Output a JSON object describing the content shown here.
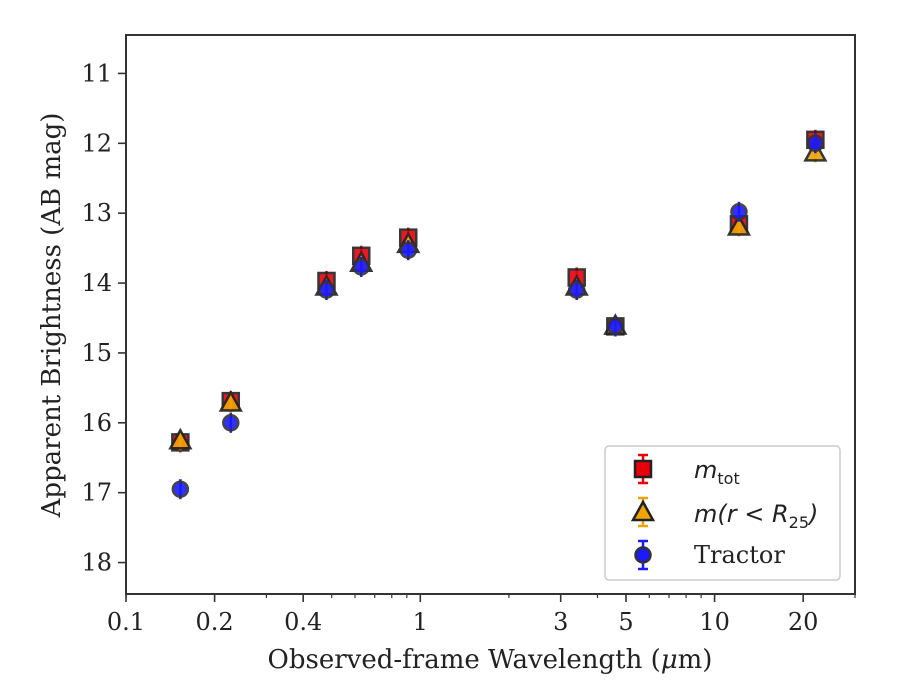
{
  "chart_data": {
    "type": "scatter",
    "title": "",
    "xlabel_text": "Observed-frame Wavelength (",
    "xlabel_mu": "μ",
    "xlabel_unit": "m)",
    "ylabel": "Apparent Brightness (AB mag)",
    "xscale": "log",
    "xlim": [
      0.1,
      30
    ],
    "ylim": [
      18.45,
      10.45
    ],
    "y_inverted": true,
    "grid": false,
    "legend_placement": "bottom-right",
    "x_ticks": [
      {
        "value": 0.1,
        "label": "0.1"
      },
      {
        "value": 0.2,
        "label": "0.2"
      },
      {
        "value": 0.4,
        "label": "0.4"
      },
      {
        "value": 1,
        "label": "1"
      },
      {
        "value": 3,
        "label": "3"
      },
      {
        "value": 5,
        "label": "5"
      },
      {
        "value": 10,
        "label": "10"
      },
      {
        "value": 20,
        "label": "20"
      }
    ],
    "y_ticks": [
      {
        "value": 11,
        "label": "11"
      },
      {
        "value": 12,
        "label": "12"
      },
      {
        "value": 13,
        "label": "13"
      },
      {
        "value": 14,
        "label": "14"
      },
      {
        "value": 15,
        "label": "15"
      },
      {
        "value": 16,
        "label": "16"
      },
      {
        "value": 17,
        "label": "17"
      },
      {
        "value": 18,
        "label": "18"
      }
    ],
    "series": [
      {
        "key": "m_tot",
        "label_main": "m",
        "label_sub": "tot",
        "marker": "square",
        "color": "#e8000b",
        "edge": "#222222",
        "points": [
          {
            "x": 0.153,
            "y": 16.28
          },
          {
            "x": 0.227,
            "y": 15.69
          },
          {
            "x": 0.48,
            "y": 13.97
          },
          {
            "x": 0.63,
            "y": 13.61
          },
          {
            "x": 0.91,
            "y": 13.35
          },
          {
            "x": 3.4,
            "y": 13.92
          },
          {
            "x": 4.6,
            "y": 14.62
          },
          {
            "x": 12.1,
            "y": 13.16
          },
          {
            "x": 22.0,
            "y": 11.95
          }
        ]
      },
      {
        "key": "m_r25",
        "label_main": "m(r < R",
        "label_sub": "25",
        "label_close": ")",
        "marker": "triangle",
        "color": "#f1a300",
        "edge": "#222222",
        "points": [
          {
            "x": 0.153,
            "y": 16.25
          },
          {
            "x": 0.227,
            "y": 15.71
          },
          {
            "x": 0.48,
            "y": 14.05
          },
          {
            "x": 0.63,
            "y": 13.71
          },
          {
            "x": 0.91,
            "y": 13.44
          },
          {
            "x": 3.4,
            "y": 14.05
          },
          {
            "x": 4.6,
            "y": 14.61
          },
          {
            "x": 12.1,
            "y": 13.19
          },
          {
            "x": 22.0,
            "y": 12.13
          }
        ]
      },
      {
        "key": "tractor",
        "label_main": "Tractor",
        "marker": "circle",
        "color": "#1a1aff",
        "edge": "#333333",
        "points": [
          {
            "x": 0.153,
            "y": 16.95
          },
          {
            "x": 0.227,
            "y": 16.0
          },
          {
            "x": 0.48,
            "y": 14.1
          },
          {
            "x": 0.63,
            "y": 13.77
          },
          {
            "x": 0.91,
            "y": 13.53
          },
          {
            "x": 3.4,
            "y": 14.1
          },
          {
            "x": 4.6,
            "y": 14.62
          },
          {
            "x": 12.1,
            "y": 12.98
          },
          {
            "x": 22.0,
            "y": 12.0
          }
        ]
      }
    ]
  }
}
